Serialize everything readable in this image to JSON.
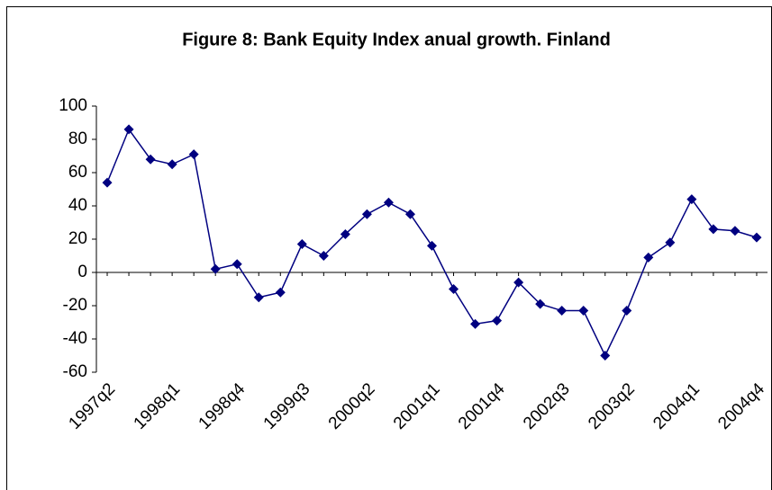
{
  "chart_data": {
    "type": "line",
    "title": "Figure 8: Bank Equity Index anual growth. Finland",
    "categories": [
      "1997q2",
      null,
      null,
      "1998q1",
      null,
      null,
      "1998q4",
      null,
      null,
      "1999q3",
      null,
      null,
      "2000q2",
      null,
      null,
      "2001q1",
      null,
      null,
      "2001q4",
      null,
      null,
      "2002q3",
      null,
      null,
      "2003q2",
      null,
      null,
      "2004q1",
      null,
      null,
      "2004q4"
    ],
    "values": [
      54,
      86,
      68,
      65,
      71,
      2,
      5,
      -15,
      -12,
      17,
      10,
      23,
      35,
      42,
      35,
      16,
      -10,
      -31,
      -29,
      -6,
      -19,
      -23,
      -23,
      -50,
      -23,
      9,
      18,
      44,
      26,
      25,
      21
    ],
    "color": "#000080",
    "ylim": [
      -60,
      100
    ],
    "yticks": [
      -60,
      -40,
      -20,
      0,
      20,
      40,
      60,
      80,
      100
    ],
    "grid": false
  }
}
